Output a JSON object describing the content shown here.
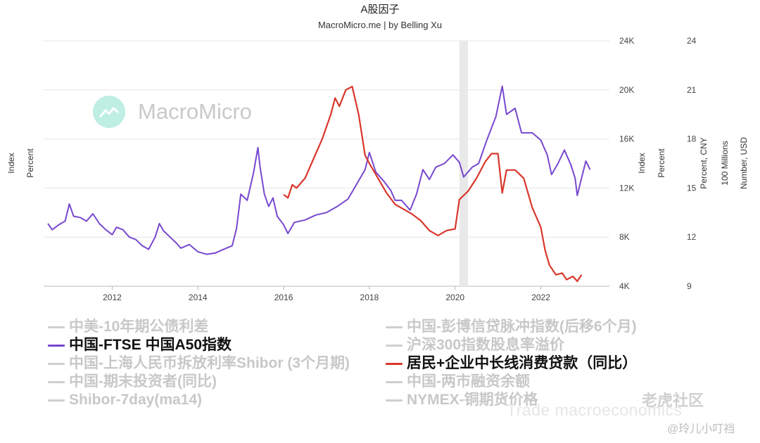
{
  "header": {
    "title": "A股因子",
    "subtitle": "MacroMicro.me | by Belling Xu"
  },
  "watermark": {
    "text": "MacroMicro",
    "icon": "chart-line-icon"
  },
  "overlays": {
    "community": "老虎社区",
    "handle": "Trade macroeconomics",
    "author": "@玲儿小叮裆"
  },
  "legend": {
    "left": [
      {
        "label": "中美-10年期公债利差",
        "active": false,
        "color": "#cfcfcf"
      },
      {
        "label": "中国-FTSE 中国A50指数",
        "active": true,
        "color": "#7748cf"
      },
      {
        "label": "中国-上海人民币拆放利率Shibor (3个月期)",
        "active": false,
        "color": "#cfcfcf"
      },
      {
        "label": "中国-期末投资者(同比)",
        "active": false,
        "color": "#cfcfcf"
      },
      {
        "label": "Shibor-7day(ma14)",
        "active": false,
        "color": "#cfcfcf"
      }
    ],
    "right": [
      {
        "label": "中国-彭博信贷脉冲指数(后移6个月)",
        "active": false,
        "color": "#cfcfcf"
      },
      {
        "label": "沪深300指数股息率溢价",
        "active": false,
        "color": "#cfcfcf"
      },
      {
        "label": "居民+企业中长线消费贷款（同比）",
        "active": true,
        "color": "#d9372b"
      },
      {
        "label": "中国-两市融资余额",
        "active": false,
        "color": "#cfcfcf"
      },
      {
        "label": "NYMEX-铜期货价格",
        "active": false,
        "color": "#cfcfcf"
      }
    ]
  },
  "chart_data": {
    "type": "line",
    "x_axis": {
      "ticks": [
        "2012",
        "2014",
        "2016",
        "2018",
        "2020",
        "2022"
      ],
      "range": [
        2010.4,
        2023.6
      ]
    },
    "left_axis_labels": [
      "Index",
      "Percent"
    ],
    "right_axis_1": {
      "ticks": [
        "4K",
        "8K",
        "12K",
        "16K",
        "20K",
        "24K"
      ],
      "range": [
        4000,
        24000
      ],
      "labels": [
        "Index",
        "Percent"
      ]
    },
    "right_axis_2": {
      "ticks": [
        "9",
        "12",
        "15",
        "18",
        "21",
        "24"
      ],
      "range": [
        9,
        24
      ],
      "labels": [
        "Percent, CNY",
        "100 Millions"
      ]
    },
    "right_axis_3": {
      "labels": [
        "Number, USD"
      ]
    },
    "recession_band": {
      "from": 2020.1,
      "to": 2020.3
    },
    "grid": true,
    "legend_position": "bottom",
    "series": [
      {
        "name": "中国-FTSE 中国A50指数",
        "color": "#7748cf",
        "axis": "right_axis_1",
        "points": [
          [
            2010.5,
            9100
          ],
          [
            2010.6,
            8600
          ],
          [
            2010.75,
            9000
          ],
          [
            2010.9,
            9300
          ],
          [
            2011.0,
            10700
          ],
          [
            2011.1,
            9700
          ],
          [
            2011.25,
            9600
          ],
          [
            2011.4,
            9300
          ],
          [
            2011.55,
            9900
          ],
          [
            2011.7,
            9100
          ],
          [
            2011.85,
            8600
          ],
          [
            2012.0,
            8200
          ],
          [
            2012.1,
            8800
          ],
          [
            2012.25,
            8600
          ],
          [
            2012.4,
            8000
          ],
          [
            2012.55,
            7800
          ],
          [
            2012.7,
            7300
          ],
          [
            2012.85,
            7000
          ],
          [
            2013.0,
            8000
          ],
          [
            2013.1,
            9100
          ],
          [
            2013.2,
            8500
          ],
          [
            2013.35,
            8000
          ],
          [
            2013.5,
            7500
          ],
          [
            2013.6,
            7100
          ],
          [
            2013.8,
            7400
          ],
          [
            2014.0,
            6800
          ],
          [
            2014.2,
            6600
          ],
          [
            2014.4,
            6700
          ],
          [
            2014.6,
            7000
          ],
          [
            2014.8,
            7300
          ],
          [
            2014.9,
            8700
          ],
          [
            2015.0,
            11500
          ],
          [
            2015.15,
            11000
          ],
          [
            2015.3,
            13300
          ],
          [
            2015.4,
            15300
          ],
          [
            2015.45,
            13700
          ],
          [
            2015.55,
            11500
          ],
          [
            2015.65,
            10500
          ],
          [
            2015.75,
            11200
          ],
          [
            2015.85,
            9700
          ],
          [
            2016.0,
            9000
          ],
          [
            2016.1,
            8300
          ],
          [
            2016.25,
            9200
          ],
          [
            2016.5,
            9400
          ],
          [
            2016.75,
            9800
          ],
          [
            2017.0,
            10000
          ],
          [
            2017.25,
            10500
          ],
          [
            2017.5,
            11100
          ],
          [
            2017.75,
            12600
          ],
          [
            2017.9,
            13500
          ],
          [
            2018.0,
            14900
          ],
          [
            2018.15,
            13300
          ],
          [
            2018.35,
            12500
          ],
          [
            2018.5,
            11800
          ],
          [
            2018.6,
            11000
          ],
          [
            2018.75,
            11000
          ],
          [
            2018.95,
            10200
          ],
          [
            2019.1,
            11500
          ],
          [
            2019.25,
            13500
          ],
          [
            2019.4,
            12700
          ],
          [
            2019.55,
            13700
          ],
          [
            2019.75,
            14000
          ],
          [
            2019.95,
            14700
          ],
          [
            2020.1,
            14100
          ],
          [
            2020.2,
            12900
          ],
          [
            2020.4,
            13700
          ],
          [
            2020.55,
            14000
          ],
          [
            2020.75,
            16000
          ],
          [
            2020.95,
            17800
          ],
          [
            2021.1,
            20300
          ],
          [
            2021.2,
            18000
          ],
          [
            2021.4,
            18500
          ],
          [
            2021.55,
            16500
          ],
          [
            2021.8,
            16500
          ],
          [
            2022.0,
            15900
          ],
          [
            2022.15,
            14700
          ],
          [
            2022.25,
            13100
          ],
          [
            2022.4,
            14000
          ],
          [
            2022.55,
            15100
          ],
          [
            2022.7,
            13900
          ],
          [
            2022.8,
            12800
          ],
          [
            2022.85,
            11400
          ],
          [
            2022.95,
            12800
          ],
          [
            2023.05,
            14200
          ],
          [
            2023.15,
            13500
          ]
        ]
      },
      {
        "name": "居民+企业中长线消费贷款（同比）",
        "color": "#d9372b",
        "axis": "right_axis_2",
        "points": [
          [
            2016.0,
            14.6
          ],
          [
            2016.1,
            14.4
          ],
          [
            2016.2,
            15.2
          ],
          [
            2016.3,
            15.0
          ],
          [
            2016.5,
            15.6
          ],
          [
            2016.7,
            16.8
          ],
          [
            2016.9,
            18.0
          ],
          [
            2017.1,
            19.5
          ],
          [
            2017.2,
            20.5
          ],
          [
            2017.3,
            20.0
          ],
          [
            2017.45,
            21.0
          ],
          [
            2017.6,
            21.2
          ],
          [
            2017.75,
            19.5
          ],
          [
            2017.9,
            17.0
          ],
          [
            2018.0,
            16.5
          ],
          [
            2018.2,
            15.6
          ],
          [
            2018.4,
            14.7
          ],
          [
            2018.6,
            14.0
          ],
          [
            2018.8,
            13.7
          ],
          [
            2019.0,
            13.4
          ],
          [
            2019.2,
            13.0
          ],
          [
            2019.4,
            12.4
          ],
          [
            2019.6,
            12.1
          ],
          [
            2019.8,
            12.4
          ],
          [
            2020.0,
            12.5
          ],
          [
            2020.1,
            14.3
          ],
          [
            2020.3,
            14.8
          ],
          [
            2020.5,
            15.6
          ],
          [
            2020.7,
            16.6
          ],
          [
            2020.85,
            17.1
          ],
          [
            2021.0,
            17.1
          ],
          [
            2021.1,
            14.7
          ],
          [
            2021.2,
            16.1
          ],
          [
            2021.4,
            16.1
          ],
          [
            2021.6,
            15.6
          ],
          [
            2021.8,
            13.8
          ],
          [
            2022.0,
            12.6
          ],
          [
            2022.1,
            11.2
          ],
          [
            2022.2,
            10.3
          ],
          [
            2022.35,
            9.7
          ],
          [
            2022.5,
            9.8
          ],
          [
            2022.6,
            9.4
          ],
          [
            2022.75,
            9.6
          ],
          [
            2022.85,
            9.3
          ],
          [
            2022.95,
            9.7
          ]
        ]
      }
    ]
  }
}
